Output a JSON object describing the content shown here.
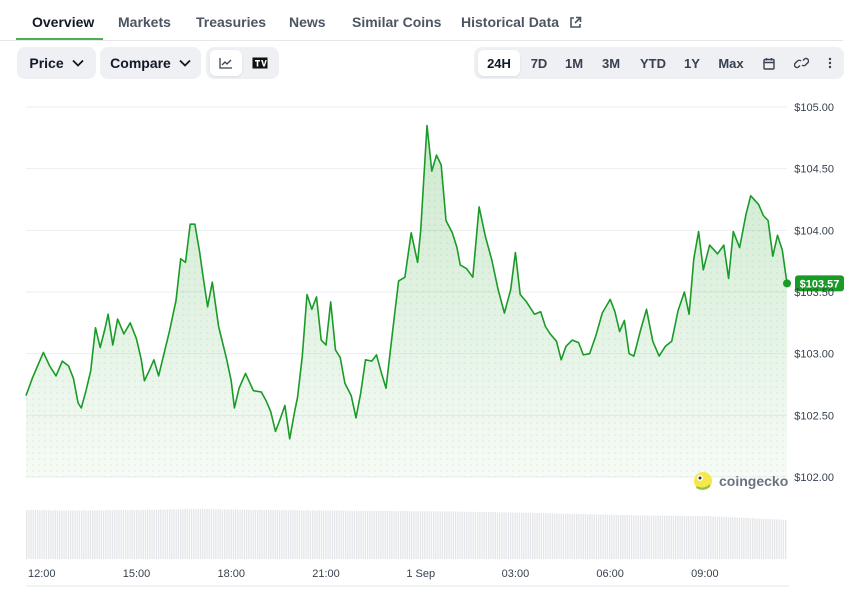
{
  "tabs": [
    {
      "label": "Overview",
      "active": true
    },
    {
      "label": "Markets"
    },
    {
      "label": "Treasuries"
    },
    {
      "label": "News"
    },
    {
      "label": "Similar Coins"
    },
    {
      "label": "Historical Data",
      "icon": "external-link-icon"
    }
  ],
  "toolbar": {
    "price_label": "Price",
    "compare_label": "Compare",
    "chart_types": [
      {
        "icon": "line-chart-icon",
        "selected": true
      },
      {
        "icon": "tradingview-icon",
        "selected": false
      }
    ],
    "ranges": [
      "24H",
      "7D",
      "1M",
      "3M",
      "YTD",
      "1Y",
      "Max"
    ],
    "selected_range": "24H",
    "extra_icons": [
      "calendar-icon",
      "link-icon",
      "more-vertical-icon"
    ]
  },
  "colors": {
    "line": "#1a9b27",
    "fill": "#4caf50",
    "accent": "#4caf50",
    "price_tag": "#1a9b27"
  },
  "watermark": "coingecko",
  "chart_data": {
    "type": "area",
    "y_ticks": [
      "$105.00",
      "$104.50",
      "$104.00",
      "$103.50",
      "$103.00",
      "$102.50",
      "$102.00"
    ],
    "y_tick_values": [
      105,
      104.5,
      104,
      103.5,
      103,
      102.5,
      102
    ],
    "ylim": [
      102,
      105
    ],
    "x_ticks": [
      "12:00",
      "15:00",
      "18:00",
      "21:00",
      "1 Sep",
      "03:00",
      "06:00",
      "09:00"
    ],
    "x_tick_hours": [
      12,
      15,
      18,
      21,
      24,
      27,
      30,
      33
    ],
    "xlim_hours": [
      11.5,
      35.6
    ],
    "grid": true,
    "current_price": "$103.57",
    "current_value": 103.57,
    "series": [
      {
        "points": [
          [
            11.5,
            102.66
          ],
          [
            11.7,
            102.8
          ],
          [
            11.95,
            102.95
          ],
          [
            12.05,
            103.01
          ],
          [
            12.25,
            102.9
          ],
          [
            12.45,
            102.82
          ],
          [
            12.65,
            102.94
          ],
          [
            12.85,
            102.9
          ],
          [
            13.0,
            102.8
          ],
          [
            13.15,
            102.6
          ],
          [
            13.25,
            102.56
          ],
          [
            13.4,
            102.7
          ],
          [
            13.55,
            102.86
          ],
          [
            13.7,
            103.21
          ],
          [
            13.85,
            103.05
          ],
          [
            14.0,
            103.2
          ],
          [
            14.1,
            103.32
          ],
          [
            14.25,
            103.07
          ],
          [
            14.4,
            103.28
          ],
          [
            14.6,
            103.16
          ],
          [
            14.8,
            103.25
          ],
          [
            15.0,
            103.12
          ],
          [
            15.15,
            102.95
          ],
          [
            15.25,
            102.78
          ],
          [
            15.4,
            102.86
          ],
          [
            15.55,
            102.95
          ],
          [
            15.7,
            102.82
          ],
          [
            15.9,
            103.03
          ],
          [
            16.05,
            103.19
          ],
          [
            16.25,
            103.43
          ],
          [
            16.4,
            103.77
          ],
          [
            16.55,
            103.74
          ],
          [
            16.7,
            104.05
          ],
          [
            16.85,
            104.05
          ],
          [
            17.0,
            103.82
          ],
          [
            17.1,
            103.64
          ],
          [
            17.25,
            103.38
          ],
          [
            17.4,
            103.58
          ],
          [
            17.6,
            103.22
          ],
          [
            17.85,
            102.96
          ],
          [
            18.0,
            102.78
          ],
          [
            18.1,
            102.56
          ],
          [
            18.25,
            102.72
          ],
          [
            18.45,
            102.84
          ],
          [
            18.7,
            102.7
          ],
          [
            18.95,
            102.69
          ],
          [
            19.1,
            102.62
          ],
          [
            19.25,
            102.53
          ],
          [
            19.4,
            102.37
          ],
          [
            19.55,
            102.47
          ],
          [
            19.7,
            102.58
          ],
          [
            19.85,
            102.31
          ],
          [
            20.0,
            102.52
          ],
          [
            20.1,
            102.65
          ],
          [
            20.25,
            102.98
          ],
          [
            20.4,
            103.48
          ],
          [
            20.55,
            103.36
          ],
          [
            20.7,
            103.46
          ],
          [
            20.85,
            103.11
          ],
          [
            21.0,
            103.07
          ],
          [
            21.15,
            103.42
          ],
          [
            21.3,
            103.03
          ],
          [
            21.45,
            102.97
          ],
          [
            21.6,
            102.76
          ],
          [
            21.8,
            102.66
          ],
          [
            21.95,
            102.48
          ],
          [
            22.1,
            102.68
          ],
          [
            22.25,
            102.95
          ],
          [
            22.45,
            102.94
          ],
          [
            22.6,
            102.99
          ],
          [
            22.75,
            102.85
          ],
          [
            22.9,
            102.72
          ],
          [
            23.1,
            103.16
          ],
          [
            23.3,
            103.59
          ],
          [
            23.5,
            103.62
          ],
          [
            23.7,
            103.98
          ],
          [
            23.9,
            103.74
          ],
          [
            24.0,
            104.0
          ],
          [
            24.2,
            104.85
          ],
          [
            24.35,
            104.48
          ],
          [
            24.5,
            104.61
          ],
          [
            24.65,
            104.53
          ],
          [
            24.8,
            104.08
          ],
          [
            25.0,
            103.98
          ],
          [
            25.15,
            103.86
          ],
          [
            25.25,
            103.72
          ],
          [
            25.45,
            103.69
          ],
          [
            25.65,
            103.62
          ],
          [
            25.85,
            104.19
          ],
          [
            26.05,
            103.95
          ],
          [
            26.25,
            103.76
          ],
          [
            26.45,
            103.52
          ],
          [
            26.65,
            103.33
          ],
          [
            26.85,
            103.52
          ],
          [
            27.0,
            103.82
          ],
          [
            27.15,
            103.48
          ],
          [
            27.35,
            103.42
          ],
          [
            27.6,
            103.32
          ],
          [
            27.8,
            103.34
          ],
          [
            27.95,
            103.22
          ],
          [
            28.1,
            103.16
          ],
          [
            28.3,
            103.1
          ],
          [
            28.45,
            102.95
          ],
          [
            28.6,
            103.06
          ],
          [
            28.8,
            103.11
          ],
          [
            29.0,
            103.09
          ],
          [
            29.15,
            102.99
          ],
          [
            29.35,
            103.0
          ],
          [
            29.55,
            103.15
          ],
          [
            29.75,
            103.33
          ],
          [
            30.0,
            103.44
          ],
          [
            30.15,
            103.34
          ],
          [
            30.3,
            103.18
          ],
          [
            30.45,
            103.27
          ],
          [
            30.6,
            103.0
          ],
          [
            30.75,
            102.98
          ],
          [
            30.95,
            103.18
          ],
          [
            31.15,
            103.36
          ],
          [
            31.35,
            103.1
          ],
          [
            31.55,
            102.98
          ],
          [
            31.75,
            103.06
          ],
          [
            31.95,
            103.1
          ],
          [
            32.15,
            103.35
          ],
          [
            32.35,
            103.5
          ],
          [
            32.5,
            103.32
          ],
          [
            32.65,
            103.77
          ],
          [
            32.8,
            103.99
          ],
          [
            32.95,
            103.68
          ],
          [
            33.15,
            103.88
          ],
          [
            33.4,
            103.81
          ],
          [
            33.6,
            103.88
          ],
          [
            33.75,
            103.61
          ],
          [
            33.9,
            103.99
          ],
          [
            34.1,
            103.86
          ],
          [
            34.3,
            104.13
          ],
          [
            34.45,
            104.28
          ],
          [
            34.7,
            104.21
          ],
          [
            34.85,
            104.12
          ],
          [
            35.0,
            104.08
          ],
          [
            35.15,
            103.79
          ],
          [
            35.3,
            103.96
          ],
          [
            35.45,
            103.84
          ],
          [
            35.6,
            103.57
          ]
        ]
      }
    ],
    "volume": [
      [
        11.5,
        0.98
      ],
      [
        13.0,
        0.97
      ],
      [
        15.0,
        0.98
      ],
      [
        17.0,
        1.0
      ],
      [
        19.0,
        0.98
      ],
      [
        21.0,
        0.97
      ],
      [
        23.0,
        0.96
      ],
      [
        25.0,
        0.95
      ],
      [
        27.0,
        0.93
      ],
      [
        29.0,
        0.9
      ],
      [
        31.0,
        0.87
      ],
      [
        33.0,
        0.86
      ],
      [
        35.0,
        0.8
      ],
      [
        35.6,
        0.78
      ]
    ]
  }
}
